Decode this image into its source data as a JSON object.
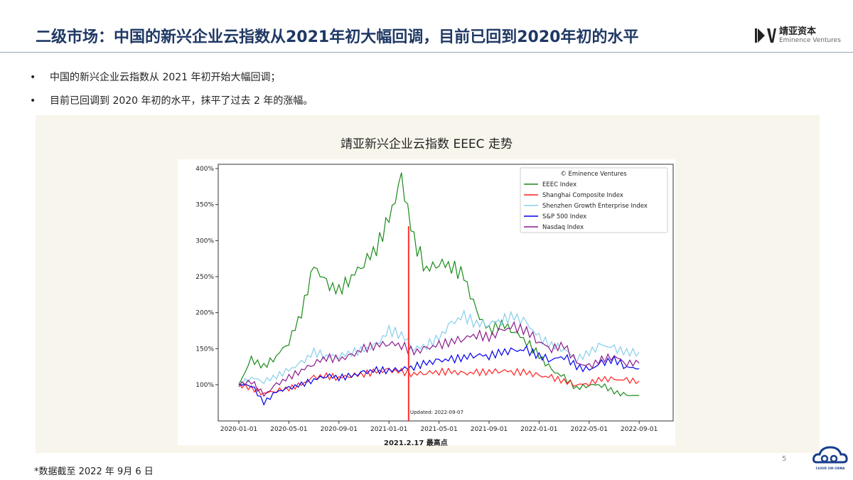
{
  "header": {
    "title": "二级市场：中国的新兴企业云指数从2021年初大幅回调，目前已回到2020年初的水平",
    "logo_cn": "靖亚资本",
    "logo_en": "Eminence Ventures"
  },
  "bullets": [
    "中国的新兴企业云指数从 2021 年初开始大幅回调；",
    "目前已回调到 2020 年初的水平，抹平了过去 2 年的涨幅。"
  ],
  "chart_title": "靖亚新兴企业云指数 EEEC 走势",
  "chart_data": {
    "type": "line",
    "title": "靖亚新兴企业云指数 EEEC 走势",
    "legend_title": "© Eminence Ventures",
    "legend_placement": "top-right",
    "x_months_start": "2020-01",
    "x_step": "1 month",
    "xticks": [
      "2020-01-01",
      "2020-05-01",
      "2020-09-01",
      "2021-01-01",
      "2021-05-01",
      "2021-09-01",
      "2022-01-01",
      "2022-05-01",
      "2022-09-01"
    ],
    "yticks": [
      "100%",
      "150%",
      "200%",
      "250%",
      "300%",
      "350%",
      "400%"
    ],
    "ylim": [
      70,
      405
    ],
    "series": [
      {
        "name": "EEEC Index",
        "color": "#1a8a1a",
        "values": [
          100,
          135,
          125,
          140,
          160,
          200,
          265,
          240,
          230,
          250,
          270,
          290,
          330,
          385,
          300,
          260,
          270,
          265,
          250,
          200,
          175,
          185,
          175,
          160,
          140,
          120,
          110,
          95,
          100,
          100,
          90,
          85,
          85
        ]
      },
      {
        "name": "Shanghai Composite Index",
        "color": "#ff2020",
        "values": [
          100,
          95,
          88,
          92,
          95,
          100,
          110,
          112,
          110,
          113,
          115,
          118,
          120,
          118,
          115,
          117,
          118,
          118,
          115,
          117,
          118,
          120,
          118,
          117,
          112,
          110,
          105,
          100,
          102,
          108,
          107,
          106,
          105
        ]
      },
      {
        "name": "Shenzhen Growth Enterprise Index",
        "color": "#87ceeb",
        "values": [
          100,
          110,
          105,
          112,
          120,
          130,
          145,
          140,
          140,
          145,
          148,
          155,
          175,
          170,
          150,
          155,
          165,
          185,
          195,
          185,
          185,
          190,
          195,
          185,
          165,
          155,
          150,
          135,
          145,
          155,
          150,
          145,
          145
        ]
      },
      {
        "name": "S&P 500 Index",
        "color": "#0000ee",
        "values": [
          100,
          100,
          75,
          90,
          95,
          100,
          107,
          113,
          110,
          112,
          117,
          120,
          120,
          122,
          125,
          130,
          133,
          135,
          138,
          142,
          140,
          145,
          147,
          148,
          140,
          135,
          140,
          125,
          120,
          130,
          135,
          125,
          122
        ]
      },
      {
        "name": "Nasdaq Index",
        "color": "#8b1a8b",
        "values": [
          100,
          105,
          85,
          100,
          110,
          120,
          130,
          138,
          135,
          140,
          150,
          155,
          158,
          155,
          145,
          150,
          155,
          160,
          165,
          170,
          165,
          175,
          180,
          175,
          160,
          150,
          155,
          130,
          125,
          135,
          140,
          130,
          130
        ]
      }
    ],
    "marker": {
      "date": "2021-02-17",
      "value_top": 320,
      "color": "#ff3030",
      "label": "Updated: 2022-09-07"
    }
  },
  "chart_note": "2021.2.17 最高点",
  "footnote": "*数据截至 2022 年 9月 6 日",
  "page_number": "5",
  "cloud_logo_text": "CLOUD 100 CHINA"
}
